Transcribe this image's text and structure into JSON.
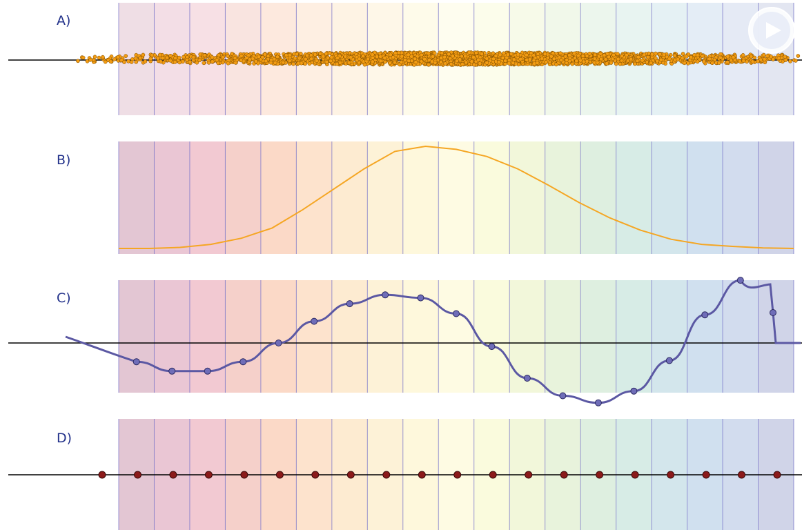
{
  "panels": [
    {
      "id": "A",
      "label": "A)"
    },
    {
      "id": "B",
      "label": "B)"
    },
    {
      "id": "C",
      "label": "C)"
    },
    {
      "id": "D",
      "label": "D)"
    }
  ],
  "bins": {
    "count": 19,
    "colors": [
      "#d0a0b5",
      "#dca0b8",
      "#e9a5b4",
      "#efb1a6",
      "#f8c0a1",
      "#fbd1ac",
      "#fbddb3",
      "#fce9bd",
      "#fdf3c4",
      "#fdf8d1",
      "#f7f8c6",
      "#e9f1c1",
      "#d8ebc4",
      "#c8e4cc",
      "#bde0d6",
      "#b5d6e0",
      "#b1cce4",
      "#b4c4e3",
      "#b0b8d8"
    ],
    "line_color": "#7773c8"
  },
  "colors": {
    "axis": "#000000",
    "sample_fill": "#f39c12",
    "sample_stroke": "#7a4a00",
    "density_line": "#f5a623",
    "curve": "#5b58a3",
    "curve_point_fill": "#6f6db8",
    "grid_point_fill": "#8b1a1a",
    "label": "#22318a"
  },
  "panel_b_density": [
    0.0,
    0.0,
    0.01,
    0.04,
    0.1,
    0.2,
    0.38,
    0.58,
    0.78,
    0.95,
    1.0,
    0.97,
    0.9,
    0.78,
    0.62,
    0.45,
    0.3,
    0.18,
    0.09,
    0.04,
    0.02,
    0.005,
    0.0
  ],
  "panel_c_points": [
    -0.32,
    -0.48,
    -0.48,
    -0.32,
    0.0,
    0.37,
    0.67,
    0.82,
    0.77,
    0.5,
    -0.06,
    -0.6,
    -0.9,
    -1.02,
    -0.82,
    -0.3,
    0.48,
    1.07,
    0.67
  ],
  "panel_d_points": 20,
  "controls": {
    "play_icon": "play-icon"
  }
}
